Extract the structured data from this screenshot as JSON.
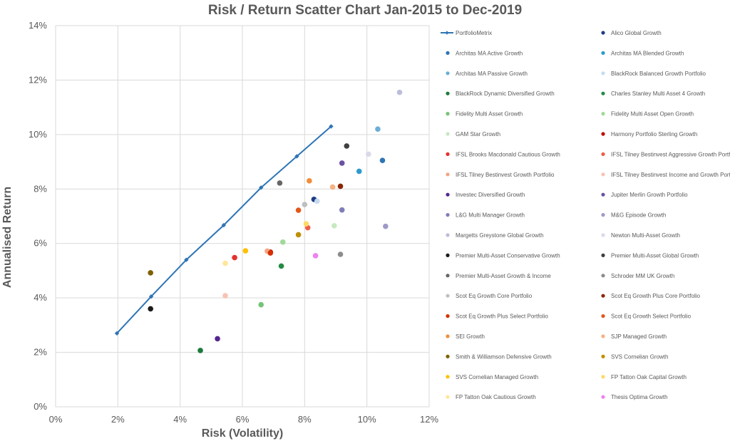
{
  "chart_data": {
    "type": "scatter",
    "title": "Risk / Return Scatter Chart Jan-2015 to Dec-2019",
    "xlabel": "Risk (Volatility)",
    "ylabel": "Annualised Return",
    "xlim": [
      0,
      12
    ],
    "ylim": [
      0,
      14
    ],
    "x_ticks": [
      "0%",
      "2%",
      "4%",
      "6%",
      "8%",
      "10%",
      "12%"
    ],
    "y_ticks": [
      "0%",
      "2%",
      "4%",
      "6%",
      "8%",
      "10%",
      "12%",
      "14%"
    ],
    "grid": true,
    "legend_position": "right",
    "line_series": {
      "name": "PortfolioMetrix",
      "color": "#2E75B6",
      "x": [
        1.97,
        3.07,
        4.2,
        5.4,
        6.6,
        7.75,
        8.85
      ],
      "y": [
        2.7,
        4.05,
        5.4,
        6.67,
        8.05,
        9.2,
        10.3
      ]
    },
    "series": [
      {
        "name": "Alico Global Growth",
        "color": "#1F3C88",
        "x": 8.3,
        "y": 7.62
      },
      {
        "name": "Architas MA Active Growth",
        "color": "#2E75B6",
        "x": 10.5,
        "y": 9.05
      },
      {
        "name": "Architas MA Blended Growth",
        "color": "#2E9BCB",
        "x": 9.75,
        "y": 8.65
      },
      {
        "name": "Architas MA Passive Growth",
        "color": "#6BAED6",
        "x": 10.35,
        "y": 10.2
      },
      {
        "name": "BlackRock Balanced Growth Portfolio",
        "color": "#C6DBEF",
        "x": 8.4,
        "y": 7.55
      },
      {
        "name": "BlackRock Dynamic Diversified Growth",
        "color": "#1A7A3A",
        "x": 4.65,
        "y": 2.07
      },
      {
        "name": "Charles Stanley Multi Asset 4 Growth",
        "color": "#238B45",
        "x": 7.25,
        "y": 5.17
      },
      {
        "name": "Fidelity Multi Asset Growth",
        "color": "#74C476",
        "x": 6.6,
        "y": 3.75
      },
      {
        "name": "Fidelity Multi Asset Open Growth",
        "color": "#A1D99B",
        "x": 7.3,
        "y": 6.05
      },
      {
        "name": "GAM Star Growth",
        "color": "#C7E9C0",
        "x": 8.95,
        "y": 6.65
      },
      {
        "name": "Harmony Portfolio Sterling Growth",
        "color": "#C00000",
        "x": 6.9,
        "y": 5.68
      },
      {
        "name": "IFSL Brooks Macdonald Cautious Growth",
        "color": "#E8302F",
        "x": 5.75,
        "y": 5.48
      },
      {
        "name": "IFSL Tilney Bestinvest Aggressive Growth Portfolio",
        "color": "#F05C4A",
        "x": 8.1,
        "y": 6.58
      },
      {
        "name": "IFSL Tilney Bestinvest Growth Portfolio",
        "color": "#F4A582",
        "x": 6.8,
        "y": 5.72
      },
      {
        "name": "IFSL Tilney Bestinvest Income and Growth Portfolio",
        "color": "#F8C3B4",
        "x": 5.45,
        "y": 4.08
      },
      {
        "name": "Investec Diversified Growth",
        "color": "#54278F",
        "x": 5.2,
        "y": 2.5
      },
      {
        "name": "Jupiter Merlin Growth Portfolio",
        "color": "#6A51A3",
        "x": 9.2,
        "y": 8.95
      },
      {
        "name": "L&G Multi Manager Growth",
        "color": "#807DBA",
        "x": 9.2,
        "y": 7.23
      },
      {
        "name": "M&G Episode Growth",
        "color": "#9E9AC8",
        "x": 10.6,
        "y": 6.63
      },
      {
        "name": "Margetts Greystone Global Growth",
        "color": "#BCBDDC",
        "x": 11.05,
        "y": 11.55
      },
      {
        "name": "Newton Multi-Asset Growth",
        "color": "#DADAEB",
        "x": 10.05,
        "y": 9.28
      },
      {
        "name": "Premier Multi-Asset Conservative Growth",
        "color": "#1A1A1A",
        "x": 3.05,
        "y": 3.6
      },
      {
        "name": "Premier Multi-Asset Global Growth",
        "color": "#404040",
        "x": 9.35,
        "y": 9.58
      },
      {
        "name": "Premier Multi-Asset Growth & Income",
        "color": "#666666",
        "x": 7.2,
        "y": 8.22
      },
      {
        "name": "Schroder MM UK Growth",
        "color": "#8C8C8C",
        "x": 9.15,
        "y": 5.6
      },
      {
        "name": "Scot Eq Growth Core Portfolio",
        "color": "#BFBFBF",
        "x": 8.0,
        "y": 7.43
      },
      {
        "name": "Scot Eq Growth Plus Core Portfolio",
        "color": "#8B2500",
        "x": 9.15,
        "y": 8.1
      },
      {
        "name": "Scot Eq Growth Plus Select Portfolio",
        "color": "#D73000",
        "x": 6.9,
        "y": 5.65
      },
      {
        "name": "Scot Eq Growth Select Portfolio",
        "color": "#E2581B",
        "x": 7.8,
        "y": 7.22
      },
      {
        "name": "SEI Growth",
        "color": "#F28E3B",
        "x": 8.15,
        "y": 8.3
      },
      {
        "name": "SJP Managed Growth",
        "color": "#F5B183",
        "x": 8.9,
        "y": 8.07
      },
      {
        "name": "Smith & Williamson Defensive Growth",
        "color": "#7F6000",
        "x": 3.05,
        "y": 4.92
      },
      {
        "name": "SVS Cornelian Growth",
        "color": "#BF8F00",
        "x": 7.8,
        "y": 6.32
      },
      {
        "name": "SVS Cornelian Managed Growth",
        "color": "#FFC000",
        "x": 6.1,
        "y": 5.73
      },
      {
        "name": "FP Tatton Oak Capital Growth",
        "color": "#FFD966",
        "x": 8.05,
        "y": 6.72
      },
      {
        "name": "FP Tatton Oak Cautious Growth",
        "color": "#FFE699",
        "x": 5.45,
        "y": 5.27
      },
      {
        "name": "Thesis Optima Growth",
        "color": "#EE82EE",
        "x": 8.35,
        "y": 5.55
      }
    ]
  }
}
